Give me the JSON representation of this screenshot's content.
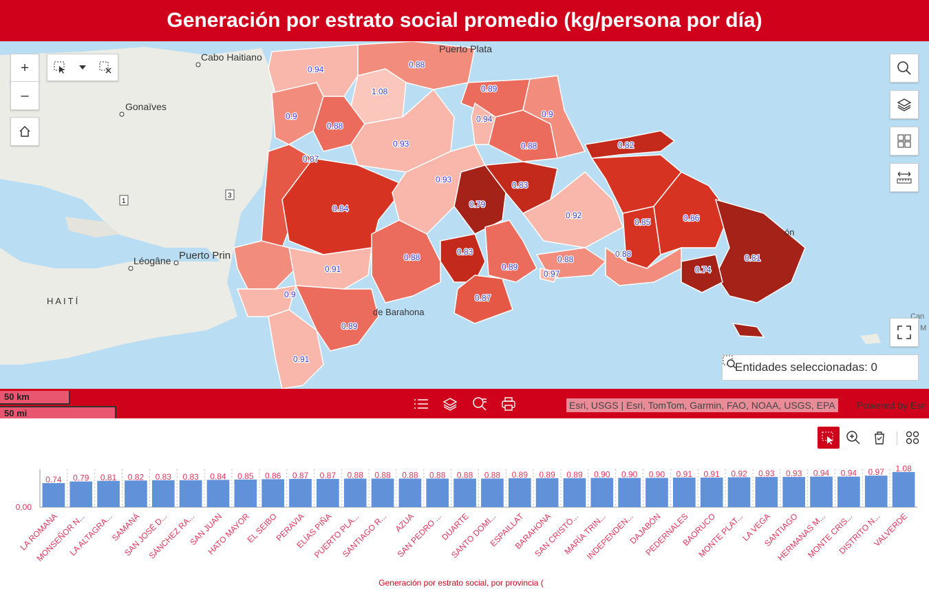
{
  "header": {
    "title": "Generación por estrato social promedio (kg/persona por día)"
  },
  "map": {
    "places": [
      "Cabo Haitiano",
      "Gonaïves",
      "Puerto Plata",
      "Léogâne",
      "Puerto Prin",
      "HAITÍ",
      "de Barahona",
      "ón",
      "Can",
      "a M"
    ],
    "route_shields": [
      "1",
      "3"
    ],
    "province_values": [
      "0.94",
      "0.88",
      "1.08",
      "0.9",
      "0.88",
      "0.89",
      "0.94",
      "0.93",
      "0.9",
      "0.87",
      "0.88",
      "0.82",
      "0.84",
      "0.93",
      "0.79",
      "0.83",
      "0.92",
      "0.85",
      "0.86",
      "0.91",
      "0.88",
      "0.83",
      "0.89",
      "0.88",
      "0.97",
      "0.88",
      "0.74",
      "0.81",
      "0.9",
      "0.87",
      "0.89",
      "0.91"
    ],
    "choropleth_colors": {
      "lightest": "#f8b7aa",
      "light": "#f28d7e",
      "mid": "#eb6b5c",
      "dark": "#d63323",
      "darkest": "#a52219"
    },
    "label_color": "#3a3ad8",
    "selected_entities_label": "Entidades seleccionadas: 0",
    "controls": {
      "zoom_in": "+",
      "zoom_out": "–"
    }
  },
  "toolbar": {
    "scale_km": "50 km",
    "scale_mi": "50 mi",
    "attribution": "Esri, USGS | Esri, TomTom, Garmin, FAO, NOAA, USGS, EPA",
    "powered_by": "Powered by Esri"
  },
  "chart_tools": {
    "accent": "#d0021b"
  },
  "chart_data": {
    "type": "bar",
    "categories": [
      "LA ROMANA",
      "MONSEÑOR N...",
      "LA ALTAGRA...",
      "SAMANÁ",
      "SAN JOSÉ D...",
      "SÁNCHEZ RA...",
      "SAN JUAN",
      "HATO MAYOR",
      "EL SEIBO",
      "PERAVIA",
      "ELÍAS PIÑA",
      "PUERTO PLA...",
      "SANTIAGO R...",
      "AZUA",
      "SAN PEDRO ...",
      "DUARTE",
      "SANTO DOMI...",
      "ESPAILLAT",
      "BARAHONA",
      "SAN CRISTÓ...",
      "MARÍA TRIN...",
      "INDEPENDEN...",
      "DAJABÓN",
      "PEDERNALES",
      "BAORUCO",
      "MONTE PLAT...",
      "LA VEGA",
      "SANTIAGO",
      "HERMANAS M...",
      "MONTE CRIS...",
      "DISTRITO N...",
      "VALVERDE"
    ],
    "values": [
      0.74,
      0.79,
      0.81,
      0.82,
      0.83,
      0.83,
      0.84,
      0.85,
      0.86,
      0.87,
      0.87,
      0.88,
      0.88,
      0.88,
      0.88,
      0.88,
      0.88,
      0.89,
      0.89,
      0.89,
      0.9,
      0.9,
      0.9,
      0.91,
      0.91,
      0.92,
      0.93,
      0.93,
      0.94,
      0.94,
      0.97,
      1.08
    ],
    "value_labels": [
      "0.74",
      "0.79",
      "0.81",
      "0.82",
      "0.83",
      "0.83",
      "0.84",
      "0.85",
      "0.86",
      "0.87",
      "0.87",
      "0.88",
      "0.88",
      "0.88",
      "0.88",
      "0.88",
      "0.88",
      "0.89",
      "0.89",
      "0.89",
      "0.90",
      "0.90",
      "0.90",
      "0.91",
      "0.91",
      "0.92",
      "0.93",
      "0.93",
      "0.94",
      "0.94",
      "0.97",
      "1.08"
    ],
    "y_tick_label": "0,00",
    "ylim": [
      0,
      1.08
    ],
    "xlabel": "Generación por estrato social, por provincia (",
    "bar_color": "#6191d9",
    "label_color": "#e0355a"
  }
}
